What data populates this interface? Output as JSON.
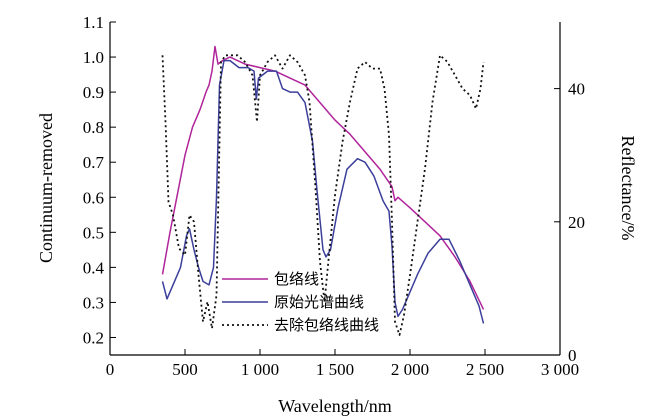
{
  "chart_data": {
    "type": "line",
    "xlabel": "Wavelength/nm",
    "ylabel": "Continuum-removed",
    "y2label": "Reflectance/%",
    "xlim": [
      0,
      3000
    ],
    "ylim": [
      0.15,
      1.1
    ],
    "y2lim": [
      0,
      50
    ],
    "xticks": [
      0,
      500,
      1000,
      1500,
      2000,
      2500,
      3000
    ],
    "xtick_labels": [
      "0",
      "500",
      "1 000",
      "1 500",
      "2 000",
      "2 500",
      "3 000"
    ],
    "yticks": [
      0.2,
      0.3,
      0.4,
      0.5,
      0.6,
      0.7,
      0.8,
      0.9,
      1.0,
      1.1
    ],
    "ytick_labels": [
      "0.2",
      "0.3",
      "0.4",
      "0.5",
      "0.6",
      "0.7",
      "0.8",
      "0.9",
      "1.0",
      "1.1"
    ],
    "y2ticks": [
      0,
      20,
      40
    ],
    "y2tick_labels": [
      "0",
      "20",
      "40"
    ],
    "grid": false,
    "legend_position": "center-left",
    "series": [
      {
        "name": "包络线",
        "color": "#b0259a",
        "dash": "solid",
        "axis": "left",
        "x": [
          350,
          400,
          450,
          500,
          550,
          600,
          640,
          660,
          680,
          700,
          720,
          750,
          800,
          900,
          1000,
          1100,
          1200,
          1300,
          1400,
          1500,
          1600,
          1700,
          1800,
          1880,
          1900,
          1920,
          2000,
          2100,
          2200,
          2300,
          2400,
          2490
        ],
        "y": [
          0.38,
          0.5,
          0.61,
          0.72,
          0.8,
          0.85,
          0.9,
          0.92,
          0.96,
          1.03,
          0.98,
          0.99,
          1.0,
          0.98,
          0.97,
          0.96,
          0.94,
          0.92,
          0.87,
          0.82,
          0.78,
          0.73,
          0.68,
          0.63,
          0.59,
          0.6,
          0.57,
          0.53,
          0.49,
          0.43,
          0.36,
          0.28
        ]
      },
      {
        "name": "原始光谱曲线",
        "color": "#3b3f9a",
        "dash": "solid",
        "axis": "left",
        "x": [
          350,
          380,
          420,
          470,
          510,
          530,
          560,
          590,
          620,
          660,
          690,
          710,
          730,
          760,
          800,
          860,
          920,
          960,
          975,
          990,
          1050,
          1110,
          1150,
          1200,
          1250,
          1300,
          1350,
          1380,
          1420,
          1440,
          1470,
          1520,
          1580,
          1650,
          1700,
          1760,
          1820,
          1860,
          1880,
          1900,
          1920,
          1950,
          2000,
          2050,
          2120,
          2200,
          2260,
          2330,
          2400,
          2460,
          2490
        ],
        "y": [
          0.36,
          0.31,
          0.35,
          0.4,
          0.49,
          0.51,
          0.45,
          0.4,
          0.36,
          0.35,
          0.4,
          0.6,
          0.92,
          0.99,
          0.99,
          0.97,
          0.97,
          0.96,
          0.88,
          0.94,
          0.96,
          0.96,
          0.91,
          0.9,
          0.9,
          0.87,
          0.76,
          0.62,
          0.45,
          0.43,
          0.45,
          0.57,
          0.68,
          0.71,
          0.7,
          0.66,
          0.59,
          0.56,
          0.46,
          0.3,
          0.26,
          0.28,
          0.33,
          0.38,
          0.44,
          0.48,
          0.48,
          0.42,
          0.35,
          0.29,
          0.24
        ]
      },
      {
        "name": "去除包络线曲线",
        "color": "#111111",
        "dash": "dotted",
        "axis": "right",
        "x": [
          350,
          370,
          390,
          420,
          460,
          500,
          530,
          560,
          590,
          620,
          650,
          680,
          710,
          740,
          770,
          800,
          850,
          900,
          950,
          980,
          1000,
          1050,
          1100,
          1150,
          1200,
          1250,
          1300,
          1330,
          1370,
          1400,
          1430,
          1460,
          1500,
          1550,
          1600,
          1650,
          1700,
          1750,
          1800,
          1830,
          1860,
          1880,
          1900,
          1930,
          1960,
          2000,
          2050,
          2100,
          2150,
          2200,
          2250,
          2300,
          2350,
          2400,
          2440,
          2470,
          2490
        ],
        "y": [
          45,
          35,
          23,
          21,
          16,
          15,
          21,
          20,
          12,
          5,
          8,
          4,
          9,
          44,
          45,
          45,
          45,
          44,
          42,
          35,
          42,
          44,
          45,
          43,
          45,
          44,
          42,
          38,
          25,
          14,
          8,
          15,
          24,
          32,
          38,
          43,
          44,
          43,
          43,
          40,
          33,
          20,
          5,
          3,
          6,
          12,
          20,
          28,
          38,
          45,
          44,
          42,
          40,
          39,
          37,
          40,
          44
        ]
      }
    ]
  }
}
